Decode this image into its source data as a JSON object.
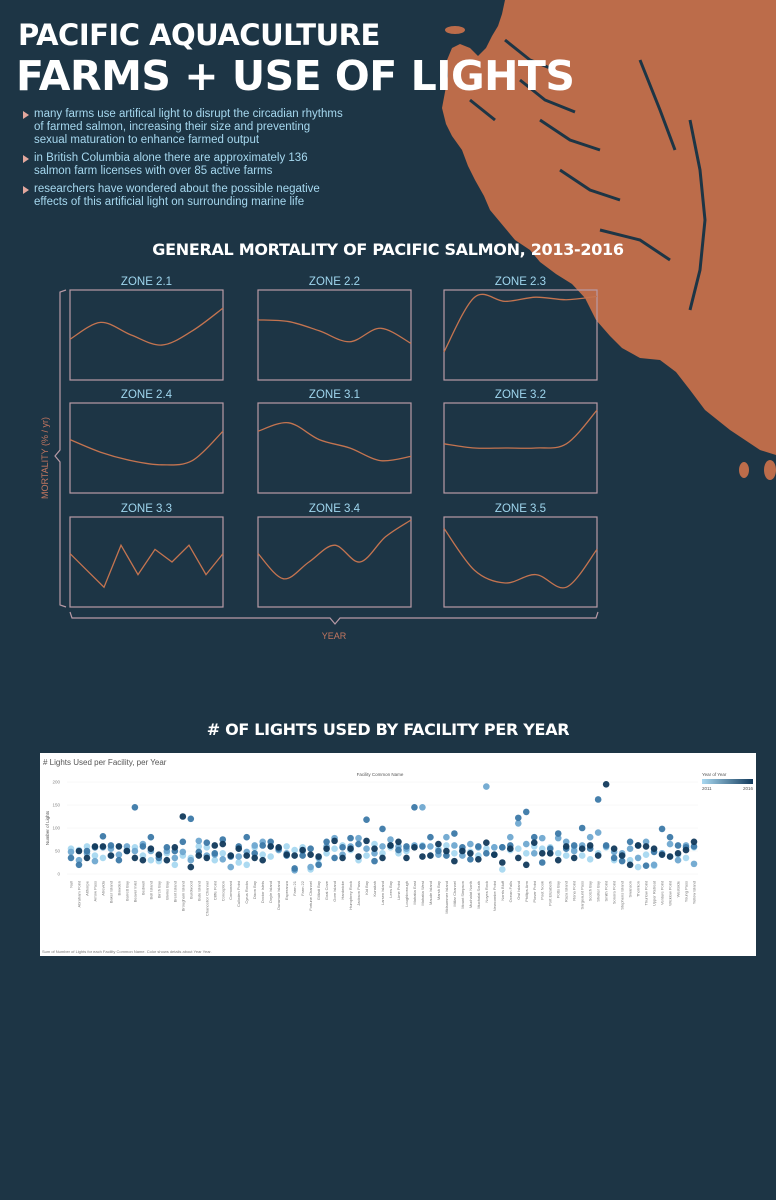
{
  "header": {
    "title_line1": "PACIFIC AQUACULTURE",
    "title_line2": "FARMS + USE OF LIGHTS"
  },
  "bullets": [
    "many farms use artifical light to disrupt the circadian rhythms of farmed salmon, increasing their size and preventing sexual maturation to enhance farmed output",
    "in British Columbia alone there are approximately 136 salmon farm licenses with over 85 active farms",
    "researchers have wondered about the possible negative effects of this artificial light on surrounding marine life"
  ],
  "colors": {
    "background": "#1d3545",
    "map_fill": "#bc6c4a",
    "curve": "#c47450",
    "panel_border": "#b89aa6",
    "accent_text": "#9fd6ee",
    "bullet_marker": "#e2a79d",
    "scale_light": "#a8d8f0",
    "scale_dark": "#123a5c"
  },
  "chart_data": [
    {
      "type": "line",
      "title": "GENERAL MORTALITY OF PACIFIC SALMON, 2013-2016",
      "xlabel": "YEAR",
      "ylabel": "MORTALITY (% / yr)",
      "axis_ticks": false,
      "panels": [
        {
          "label": "ZONE 2.1",
          "values": [
            0.45,
            0.65,
            0.5,
            0.38,
            0.55,
            0.82
          ]
        },
        {
          "label": "ZONE 2.2",
          "values": [
            0.68,
            0.66,
            0.55,
            0.42,
            0.58,
            0.4
          ]
        },
        {
          "label": "ZONE 2.3",
          "values": [
            0.3,
            0.95,
            0.9,
            0.95,
            0.92,
            0.96
          ]
        },
        {
          "label": "ZONE 2.4",
          "values": [
            0.6,
            0.45,
            0.35,
            0.3,
            0.35,
            0.7
          ]
        },
        {
          "label": "ZONE 3.1",
          "values": [
            0.7,
            0.8,
            0.6,
            0.5,
            0.35,
            0.4
          ]
        },
        {
          "label": "ZONE 3.2",
          "values": [
            0.55,
            0.5,
            0.5,
            0.5,
            0.55,
            0.95
          ]
        },
        {
          "label": "ZONE 3.3",
          "values": [
            0.6,
            0.4,
            0.2,
            0.7,
            0.35,
            0.65,
            0.5,
            0.7,
            0.35,
            0.6
          ]
        },
        {
          "label": "ZONE 3.4",
          "values": [
            0.6,
            0.3,
            0.5,
            0.7,
            0.5,
            0.8,
            1.0
          ]
        },
        {
          "label": "ZONE 3.5",
          "values": [
            0.9,
            0.4,
            0.25,
            0.35,
            0.2,
            0.65
          ]
        }
      ]
    },
    {
      "type": "scatter",
      "section_title": "# OF LIGHTS USED BY FACILITY PER YEAR",
      "title": "# Lights Used per Facility, per Year",
      "subtitle": "Facility Common Name",
      "ylabel": "Number of Lights",
      "ylim": [
        0,
        200
      ],
      "yticks": [
        0,
        50,
        100,
        150,
        200
      ],
      "legend": {
        "title": "Year of Year",
        "min": "2011",
        "max": "2016",
        "placement": "top-right"
      },
      "caption": "Sum of Number of Lights for each Facility Common Name.  Color shows details about Year Year.",
      "categories": [
        "Null",
        "Abraham Point",
        "Althorpe",
        "Arrow Pass",
        "Atrevida",
        "Baker Island",
        "Bawden",
        "Barrett Bay",
        "Beaver Inlet",
        "Bedwell",
        "Bell Island",
        "Birch Bay",
        "Bivins Bay",
        "Brent Island",
        "Brougham Island",
        "Burdwood",
        "Bute Island",
        "Chancellor Channel",
        "Cliffe Point",
        "Conception",
        "Cormorant",
        "Culloden Point",
        "Cyrus Rocks",
        "Dixon Bay",
        "Doctor Islets",
        "Doyle Island",
        "Dunsmuir Island",
        "Esperanza",
        "Farm 21",
        "Farm 22",
        "Fortune Channel",
        "Gilliatt Bay",
        "Goat Cove",
        "Gore Island",
        "Hardwicke",
        "Humphrey Rock",
        "Jackson Pass",
        "Kid Bay",
        "Kunsitah",
        "Larsen Island",
        "Lees Bay",
        "Lime Point",
        "Loughborough",
        "Mahatta East",
        "Mahatta West",
        "Maude Island",
        "Marsh Bay",
        "Midsummer Island",
        "Millar Channel",
        "Mount Simpson",
        "Muchalat North",
        "Muchalat South",
        "Noyes Rock",
        "Newcombe Point",
        "Norris Bluff",
        "Ocean Falls",
        "Owl Island",
        "Phillips Arm",
        "Plover Point",
        "Poet Nook",
        "Port Elizabeth",
        "Potts Bay",
        "Raza Island",
        "Rona Point",
        "Sargeaunt Pass",
        "Scotch Bay",
        "Shelter Bay",
        "Smith Point",
        "Sonora Point",
        "Stephens Island",
        "Swanson",
        "Thornton",
        "Thurlow Point",
        "Upper Retreat",
        "Venture Point",
        "Wicklow Point",
        "Westside",
        "Young Pass",
        "Yellow Island"
      ],
      "series": [
        {
          "values": [
            55,
            52,
            60,
            40,
            35,
            40,
            60,
            52,
            58,
            40,
            30,
            28,
            45,
            20,
            40,
            35,
            60,
            58,
            30,
            45,
            40,
            25,
            20,
            58,
            42,
            38,
            55,
            60,
            52,
            58,
            10,
            22,
            45,
            55,
            62,
            52,
            30,
            40,
            65,
            45,
            58,
            45,
            50,
            60,
            62,
            40,
            55,
            62,
            45,
            52,
            48,
            40,
            55,
            58,
            10,
            52,
            55,
            45,
            60,
            55,
            58,
            45,
            40,
            55,
            40,
            32,
            45,
            58,
            30,
            40,
            30,
            15,
            42,
            18,
            45,
            38,
            42,
            35,
            58
          ]
        },
        {
          "values": [
            48,
            30,
            45,
            28,
            58,
            55,
            42,
            60,
            50,
            65,
            50,
            40,
            50,
            35,
            48,
            30,
            72,
            40,
            42,
            32,
            15,
            38,
            48,
            62,
            70,
            60,
            52,
            45,
            8,
            50,
            15,
            35,
            60,
            78,
            42,
            60,
            78,
            55,
            45,
            60,
            75,
            60,
            55,
            62,
            145,
            60,
            42,
            80,
            62,
            40,
            65,
            58,
            190,
            58,
            58,
            80,
            110,
            65,
            45,
            78,
            45,
            78,
            70,
            50,
            62,
            80,
            90,
            60,
            48,
            45,
            55,
            35,
            70,
            20,
            45,
            65,
            30,
            62,
            22
          ]
        },
        {
          "values": [
            35,
            20,
            50,
            58,
            82,
            62,
            30,
            50,
            145,
            60,
            80,
            35,
            58,
            50,
            70,
            120,
            48,
            68,
            45,
            75,
            38,
            60,
            80,
            45,
            62,
            70,
            55,
            40,
            12,
            40,
            55,
            20,
            70,
            35,
            58,
            78,
            65,
            118,
            28,
            98,
            62,
            52,
            60,
            145,
            60,
            80,
            50,
            40,
            88,
            58,
            32,
            60,
            45,
            42,
            58,
            62,
            122,
            135,
            80,
            25,
            55,
            88,
            55,
            62,
            100,
            55,
            162,
            62,
            35,
            28,
            70,
            62,
            18,
            48,
            98,
            80,
            62,
            58,
            60
          ]
        },
        {
          "values": [
            null,
            50,
            35,
            60,
            60,
            40,
            60,
            50,
            35,
            30,
            55,
            42,
            30,
            58,
            125,
            15,
            40,
            35,
            62,
            65,
            40,
            55,
            40,
            35,
            30,
            60,
            58,
            42,
            40,
            52,
            42,
            38,
            55,
            72,
            35,
            55,
            38,
            72,
            55,
            35,
            62,
            70,
            35,
            58,
            38,
            40,
            65,
            50,
            28,
            50,
            45,
            32,
            68,
            42,
            25,
            55,
            35,
            20,
            68,
            45,
            45,
            30,
            60,
            35,
            55,
            62,
            40,
            195,
            55,
            40,
            20,
            62,
            60,
            55,
            42,
            38,
            45,
            52,
            70
          ]
        }
      ],
      "series_colors": [
        "#a8d8f0",
        "#6fa8d0",
        "#3c79a8",
        "#123a5c"
      ]
    }
  ]
}
